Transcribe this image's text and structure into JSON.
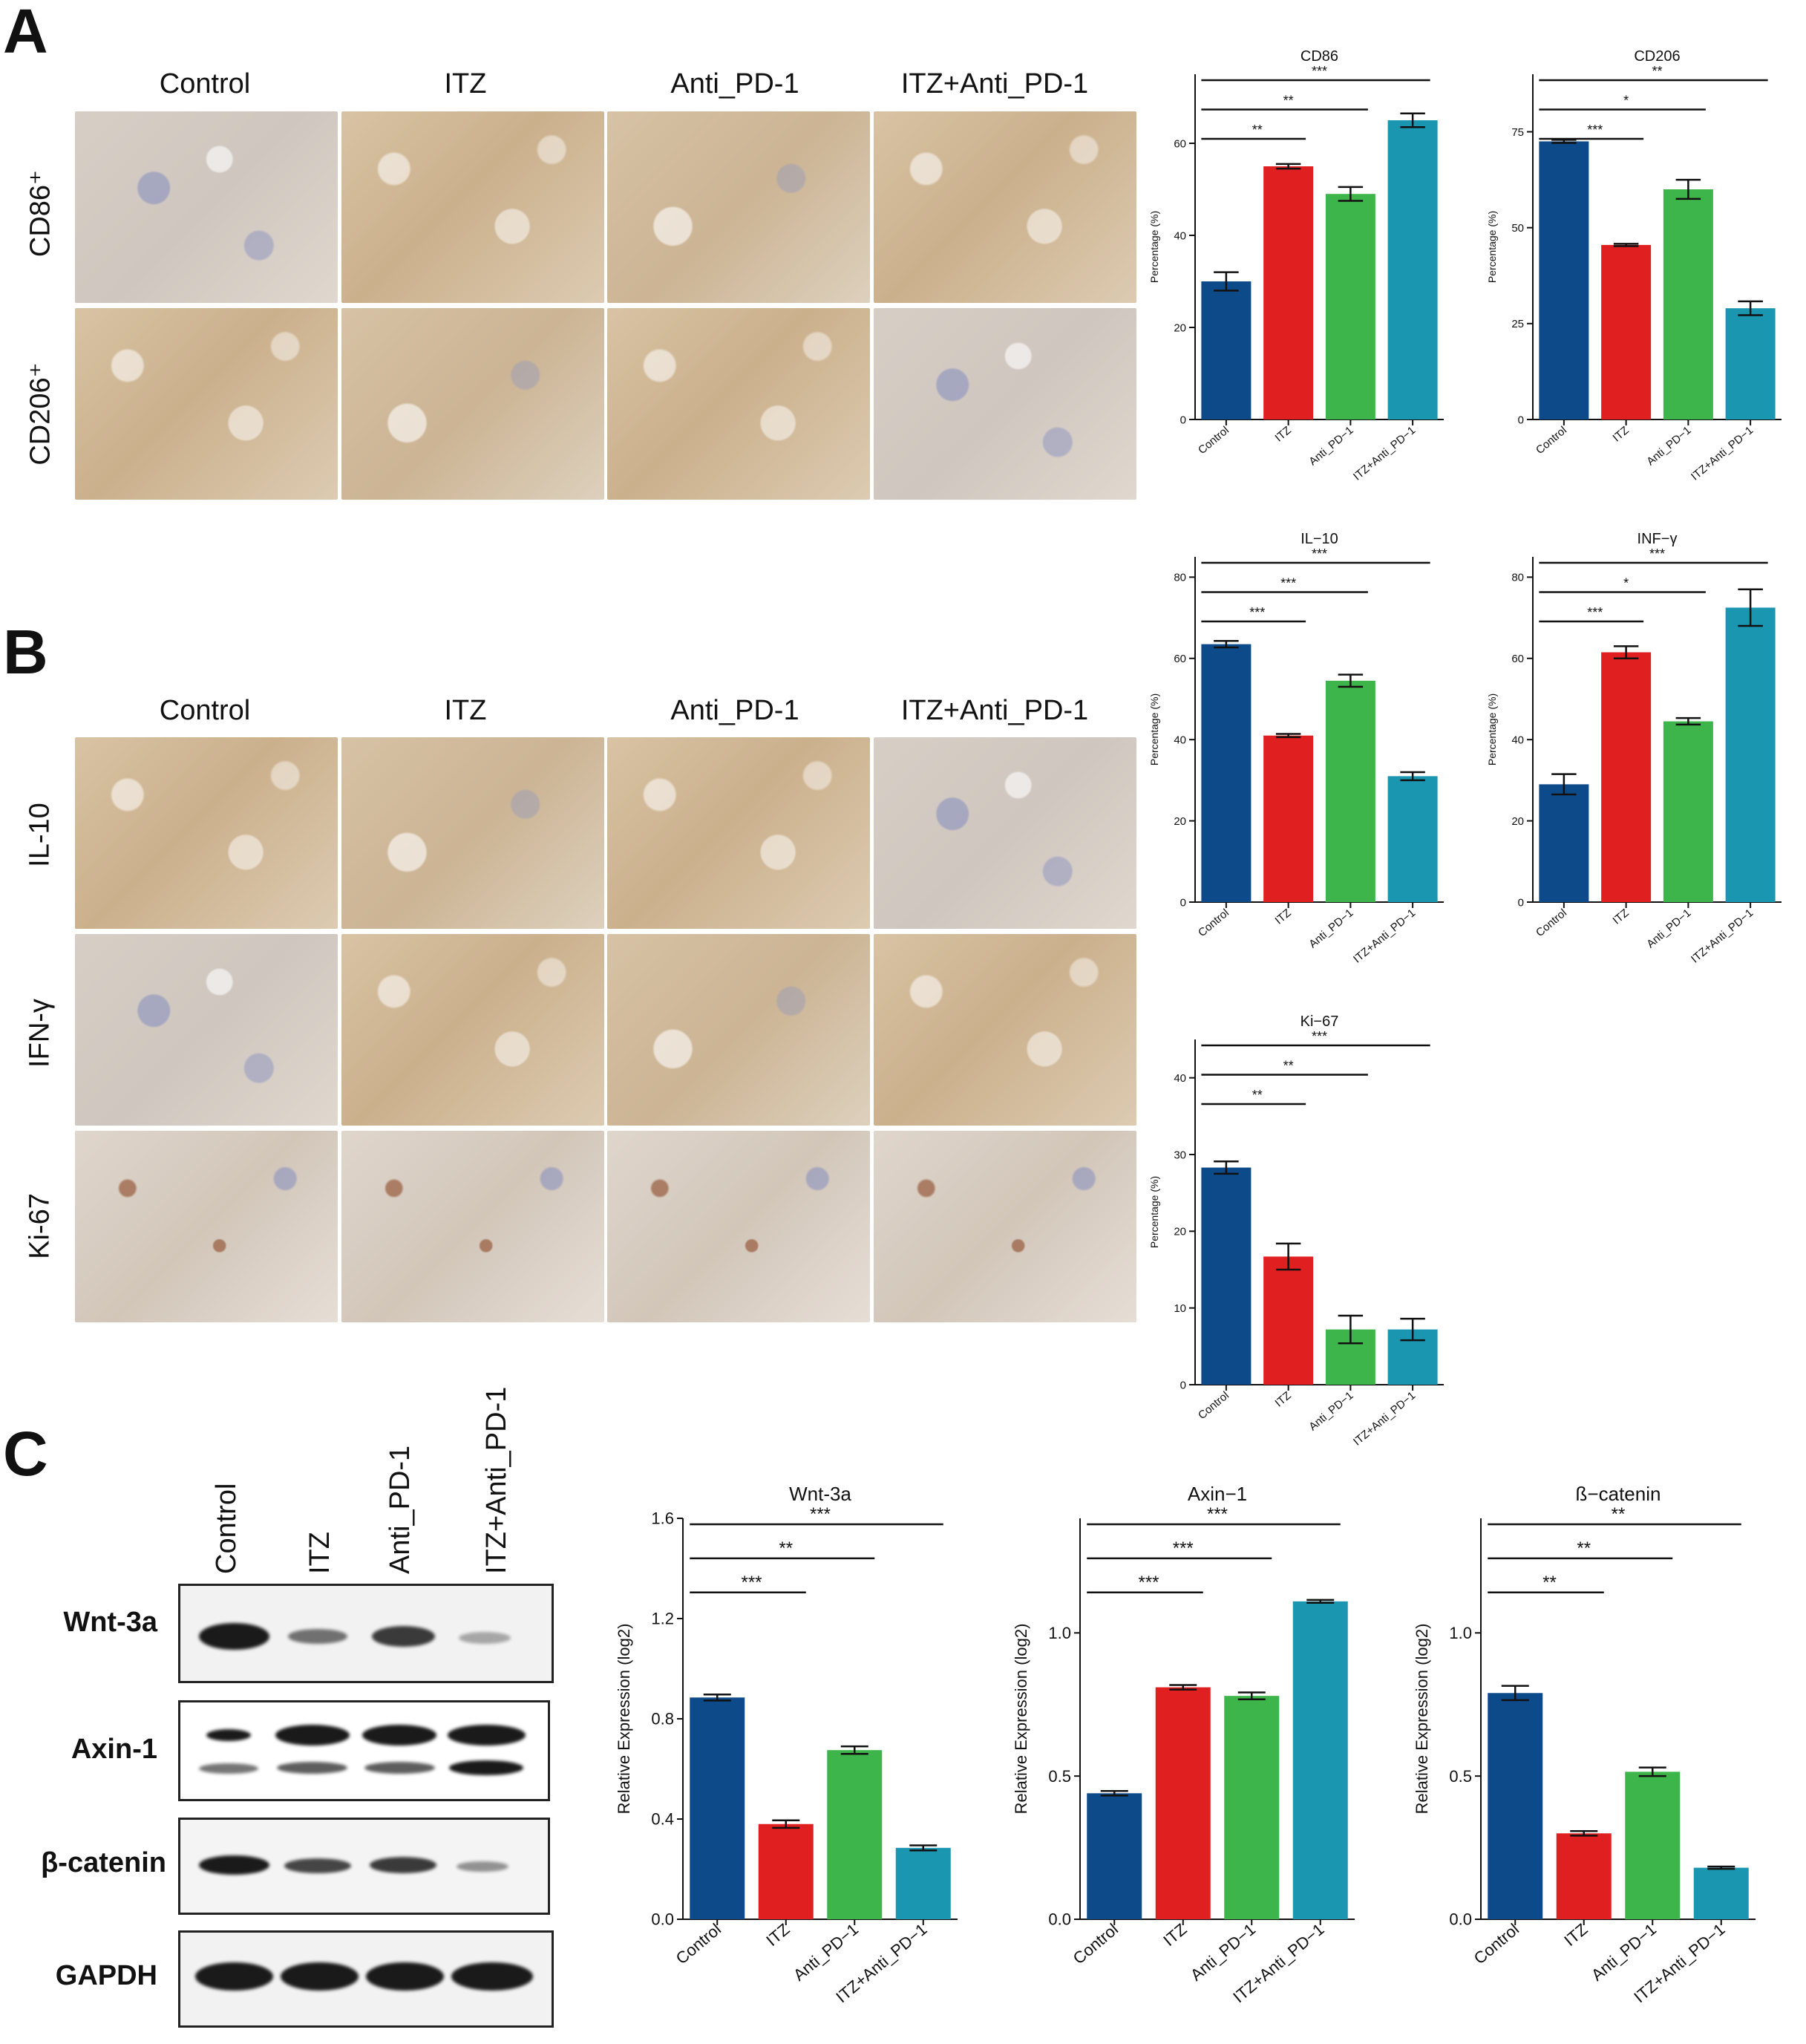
{
  "panels": {
    "a": {
      "letter": "A",
      "columns": [
        "Control",
        "ITZ",
        "Anti_PD-1",
        "ITZ+Anti_PD-1"
      ],
      "rows": [
        "CD86⁺",
        "CD206⁺"
      ]
    },
    "b": {
      "letter": "B",
      "columns": [
        "Control",
        "ITZ",
        "Anti_PD-1",
        "ITZ+Anti_PD-1"
      ],
      "rows": [
        "IL-10",
        "IFN-γ",
        "Ki-67"
      ]
    },
    "c": {
      "letter": "C",
      "lanes": [
        "Control",
        "ITZ",
        "Anti_PD-1",
        "ITZ+Anti_PD-1"
      ],
      "blots": [
        "Wnt-3a",
        "Axin-1",
        "β-catenin",
        "GAPDH"
      ]
    }
  },
  "colors": {
    "Control": "#0d4a8a",
    "ITZ": "#e02020",
    "Anti_PD-1": "#3db54a",
    "ITZ+Anti_PD-1": "#1a96b0"
  },
  "chart_data": [
    {
      "id": "cd86",
      "type": "bar",
      "title": "CD86",
      "xlabel": "",
      "ylabel": "Percentage (%)",
      "categories": [
        "Control",
        "ITZ",
        "Anti_PD−1",
        "ITZ+Anti_PD−1"
      ],
      "values": [
        30,
        55,
        49,
        65
      ],
      "errors": [
        2,
        0.5,
        1.5,
        1.5
      ],
      "ylim": [
        0,
        75
      ],
      "yticks": [
        0,
        20,
        40,
        60
      ],
      "ytick_labels": [
        "0",
        "20",
        "40",
        "60"
      ],
      "significance": [
        {
          "from": 0,
          "to": 1,
          "label": "**"
        },
        {
          "from": 0,
          "to": 2,
          "label": "**"
        },
        {
          "from": 0,
          "to": 3,
          "label": "***"
        }
      ]
    },
    {
      "id": "cd206",
      "type": "bar",
      "title": "CD206",
      "xlabel": "",
      "ylabel": "Percentage (%)",
      "categories": [
        "Control",
        "ITZ",
        "Anti_PD−1",
        "ITZ+Anti_PD−1"
      ],
      "values": [
        72.5,
        45.5,
        60,
        29
      ],
      "errors": [
        0.4,
        0.3,
        2.5,
        1.8
      ],
      "ylim": [
        0,
        90
      ],
      "yticks": [
        0,
        25,
        50,
        75
      ],
      "ytick_labels": [
        "0",
        "25",
        "50",
        "75"
      ],
      "significance": [
        {
          "from": 0,
          "to": 1,
          "label": "***"
        },
        {
          "from": 0,
          "to": 2,
          "label": "*"
        },
        {
          "from": 0,
          "to": 3,
          "label": "**"
        }
      ]
    },
    {
      "id": "il10",
      "type": "bar",
      "title": "IL−10",
      "xlabel": "",
      "ylabel": "Percentage (%)",
      "categories": [
        "Control",
        "ITZ",
        "Anti_PD−1",
        "ITZ+Anti_PD−1"
      ],
      "values": [
        63.5,
        41,
        54.5,
        31
      ],
      "errors": [
        0.8,
        0.4,
        1.5,
        1
      ],
      "ylim": [
        0,
        85
      ],
      "yticks": [
        0,
        20,
        40,
        60,
        80
      ],
      "ytick_labels": [
        "0",
        "20",
        "40",
        "60",
        "80"
      ],
      "significance": [
        {
          "from": 0,
          "to": 1,
          "label": "***"
        },
        {
          "from": 0,
          "to": 2,
          "label": "***"
        },
        {
          "from": 0,
          "to": 3,
          "label": "***"
        }
      ]
    },
    {
      "id": "infg",
      "type": "bar",
      "title": "INF−γ",
      "xlabel": "",
      "ylabel": "Percentage (%)",
      "categories": [
        "Control",
        "ITZ",
        "Anti_PD−1",
        "ITZ+Anti_PD−1"
      ],
      "values": [
        29,
        61.5,
        44.5,
        72.5
      ],
      "errors": [
        2.5,
        1.5,
        0.8,
        4.5
      ],
      "ylim": [
        0,
        85
      ],
      "yticks": [
        0,
        20,
        40,
        60,
        80
      ],
      "ytick_labels": [
        "0",
        "20",
        "40",
        "60",
        "80"
      ],
      "significance": [
        {
          "from": 0,
          "to": 1,
          "label": "***"
        },
        {
          "from": 0,
          "to": 2,
          "label": "*"
        },
        {
          "from": 0,
          "to": 3,
          "label": "***"
        }
      ]
    },
    {
      "id": "ki67",
      "type": "bar",
      "title": "Ki−67",
      "xlabel": "",
      "ylabel": "Percentage (%)",
      "categories": [
        "Control",
        "ITZ",
        "Anti_PD−1",
        "ITZ+Anti_PD−1"
      ],
      "values": [
        28.3,
        16.7,
        7.2,
        7.2
      ],
      "errors": [
        0.8,
        1.7,
        1.8,
        1.4
      ],
      "ylim": [
        0,
        45
      ],
      "yticks": [
        0,
        10,
        20,
        30,
        40
      ],
      "ytick_labels": [
        "0",
        "10",
        "20",
        "30",
        "40"
      ],
      "significance": [
        {
          "from": 0,
          "to": 1,
          "label": "**"
        },
        {
          "from": 0,
          "to": 2,
          "label": "**"
        },
        {
          "from": 0,
          "to": 3,
          "label": "***"
        }
      ]
    },
    {
      "id": "wnt3a",
      "type": "bar",
      "title": "Wnt-3a",
      "xlabel": "",
      "ylabel": "Relative Expression (log2)",
      "categories": [
        "Control",
        "ITZ",
        "Anti_PD−1",
        "ITZ+Anti_PD−1"
      ],
      "values": [
        0.885,
        0.38,
        0.675,
        0.285
      ],
      "errors": [
        0.012,
        0.015,
        0.015,
        0.01
      ],
      "ylim": [
        0,
        1.6
      ],
      "yticks": [
        0,
        0.4,
        0.8,
        1.2,
        1.6
      ],
      "ytick_labels": [
        "0.0",
        "0.4",
        "0.8",
        "1.2",
        "1.6"
      ],
      "significance": [
        {
          "from": 0,
          "to": 1,
          "label": "***"
        },
        {
          "from": 0,
          "to": 2,
          "label": "**"
        },
        {
          "from": 0,
          "to": 3,
          "label": "***"
        }
      ]
    },
    {
      "id": "axin1",
      "type": "bar",
      "title": "Axin−1",
      "xlabel": "",
      "ylabel": "Relative Expression (log2)",
      "categories": [
        "Control",
        "ITZ",
        "Anti_PD−1",
        "ITZ+Anti_PD−1"
      ],
      "values": [
        0.44,
        0.81,
        0.78,
        1.11
      ],
      "errors": [
        0.008,
        0.008,
        0.012,
        0.005
      ],
      "ylim": [
        0,
        1.4
      ],
      "yticks": [
        0,
        0.5,
        1.0
      ],
      "ytick_labels": [
        "0.0",
        "0.5",
        "1.0"
      ],
      "significance": [
        {
          "from": 0,
          "to": 1,
          "label": "***"
        },
        {
          "from": 0,
          "to": 2,
          "label": "***"
        },
        {
          "from": 0,
          "to": 3,
          "label": "***"
        }
      ]
    },
    {
      "id": "bcatenin",
      "type": "bar",
      "title": "ß−catenin",
      "xlabel": "",
      "ylabel": "Relative Expression (log2)",
      "categories": [
        "Control",
        "ITZ",
        "Anti_PD−1",
        "ITZ+Anti_PD−1"
      ],
      "values": [
        0.79,
        0.3,
        0.515,
        0.18
      ],
      "errors": [
        0.025,
        0.008,
        0.015,
        0.004
      ],
      "ylim": [
        0,
        1.4
      ],
      "yticks": [
        0,
        0.5,
        1.0
      ],
      "ytick_labels": [
        "0.0",
        "0.5",
        "1.0"
      ],
      "significance": [
        {
          "from": 0,
          "to": 1,
          "label": "**"
        },
        {
          "from": 0,
          "to": 2,
          "label": "**"
        },
        {
          "from": 0,
          "to": 3,
          "label": "**"
        }
      ]
    }
  ]
}
